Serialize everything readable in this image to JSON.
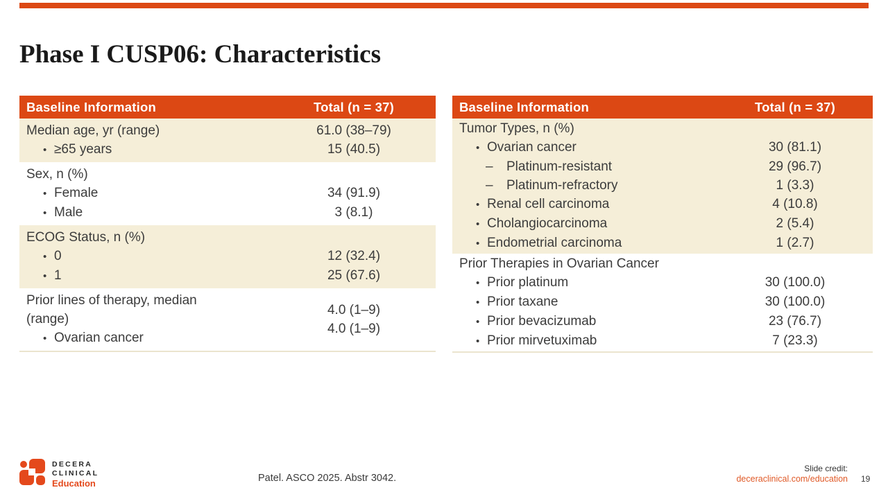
{
  "colors": {
    "accent_orange": "#DC4814",
    "logo_orange": "#E4491C",
    "link_orange": "#E05A28",
    "row_cream": "#F5EED8",
    "table_border": "#EBE4CE",
    "text_dark": "#3C3C3C",
    "title_black": "#1A1A1A"
  },
  "slide": {
    "title": "Phase I CUSP06: Characteristics"
  },
  "logo": {
    "line1": "DECERA",
    "line2": "CLINICAL",
    "line3": "Education"
  },
  "footer": {
    "citation": "Patel. ASCO 2025. Abstr 3042.",
    "credit_label": "Slide credit:",
    "credit_link": "deceraclinical.com/education",
    "page_number": "19"
  },
  "tables": [
    {
      "id": "baseline-table-left",
      "header": {
        "label": "Baseline Information",
        "value": "Total (n = 37)"
      },
      "sections": [
        {
          "shaded": true,
          "type": "rows",
          "rows": [
            {
              "indent": 0,
              "label": "Median age, yr (range)",
              "value": "61.0 (38–79)"
            },
            {
              "indent": 1,
              "label": "≥65 years",
              "value": "15 (40.5)"
            }
          ]
        },
        {
          "shaded": false,
          "type": "rows",
          "rows": [
            {
              "indent": 0,
              "label": "Sex, n (%)",
              "value": ""
            },
            {
              "indent": 1,
              "label": "Female",
              "value": "34 (91.9)"
            },
            {
              "indent": 1,
              "label": "Male",
              "value": "3 (8.1)"
            }
          ]
        },
        {
          "shaded": true,
          "type": "rows",
          "rows": [
            {
              "indent": 0,
              "label": "ECOG Status, n (%)",
              "value": ""
            },
            {
              "indent": 1,
              "label": "0",
              "value": "12 (32.4)"
            },
            {
              "indent": 1,
              "label": "1",
              "value": "25 (67.6)"
            }
          ]
        },
        {
          "shaded": false,
          "type": "grouped",
          "rows": [
            {
              "indent": 0,
              "label": "Prior lines of therapy, median (range)"
            },
            {
              "indent": 1,
              "label": "Ovarian cancer"
            }
          ],
          "values": [
            "4.0 (1–9)",
            "4.0 (1–9)"
          ]
        }
      ]
    },
    {
      "id": "baseline-table-right",
      "header": {
        "label": "Baseline Information",
        "value": "Total (n = 37)"
      },
      "sections": [
        {
          "shaded": true,
          "type": "rows",
          "rows": [
            {
              "indent": 0,
              "label": "Tumor Types, n (%)",
              "value": ""
            },
            {
              "indent": 1,
              "label": "Ovarian cancer",
              "value": "30 (81.1)"
            },
            {
              "indent": 2,
              "label": "Platinum-resistant",
              "value": "29 (96.7)"
            },
            {
              "indent": 2,
              "label": "Platinum-refractory",
              "value": "1 (3.3)"
            },
            {
              "indent": 1,
              "label": "Renal cell carcinoma",
              "value": "4 (10.8)"
            },
            {
              "indent": 1,
              "label": "Cholangiocarcinoma",
              "value": "2 (5.4)"
            },
            {
              "indent": 1,
              "label": "Endometrial carcinoma",
              "value": "1 (2.7)"
            }
          ]
        },
        {
          "shaded": false,
          "type": "rows",
          "rows": [
            {
              "indent": 0,
              "label": "Prior Therapies in Ovarian Cancer",
              "value": ""
            },
            {
              "indent": 1,
              "label": "Prior platinum",
              "value": "30 (100.0)"
            },
            {
              "indent": 1,
              "label": "Prior taxane",
              "value": "30 (100.0)"
            },
            {
              "indent": 1,
              "label": "Prior bevacizumab",
              "value": "23 (76.7)"
            },
            {
              "indent": 1,
              "label": "Prior mirvetuximab",
              "value": "7 (23.3)"
            }
          ]
        }
      ]
    }
  ]
}
